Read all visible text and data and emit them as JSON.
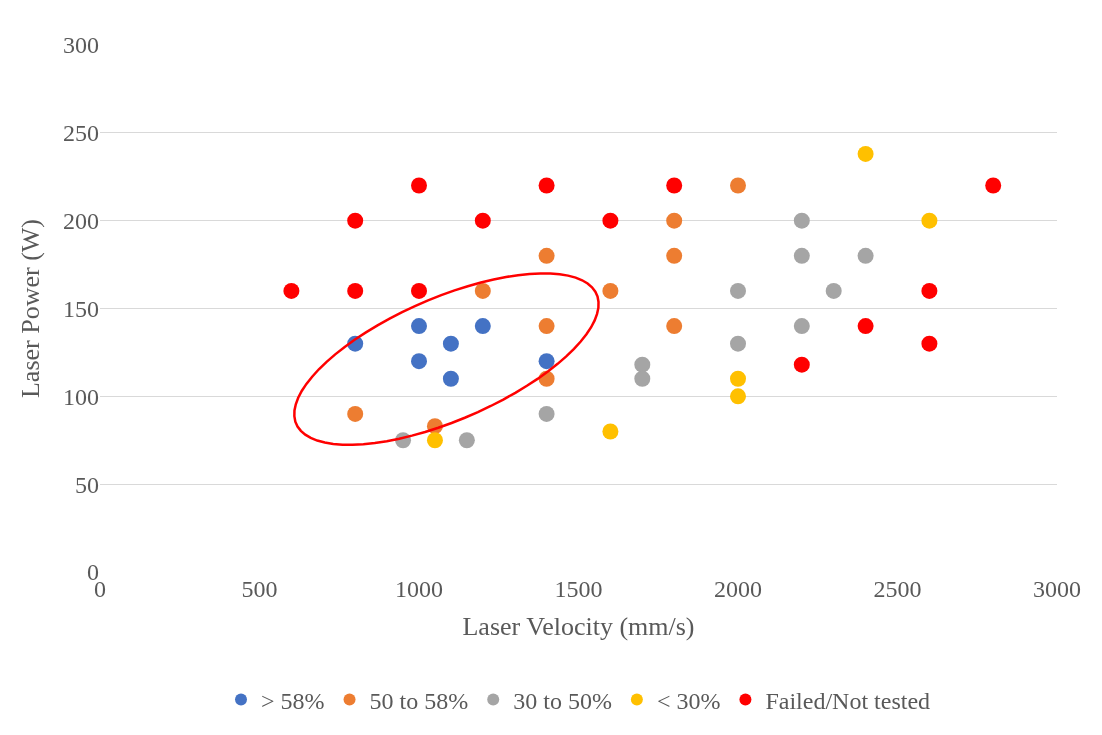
{
  "chart_data": {
    "type": "scatter",
    "xlabel": "Laser Velocity (mm/s)",
    "ylabel": "Laser Power (W)",
    "xlim": [
      0,
      3000
    ],
    "xticks": [
      0,
      500,
      1000,
      1500,
      2000,
      2500,
      3000
    ],
    "ylim": [
      0,
      300
    ],
    "yticks": [
      0,
      50,
      100,
      150,
      200,
      250,
      300
    ],
    "grid": "y",
    "legend": "bottom",
    "marker": "circle",
    "series": [
      {
        "name": "> 58%",
        "color": "#4472c4",
        "x": [
          800,
          1000,
          1000,
          1100,
          1100,
          1200,
          1400
        ],
        "values": [
          130,
          140,
          120,
          130,
          110,
          140,
          120
        ]
      },
      {
        "name": "50 to 58%",
        "color": "#ed7d31",
        "x": [
          800,
          1050,
          1200,
          1400,
          1400,
          1400,
          1600,
          1800,
          1800,
          1800,
          2000
        ],
        "values": [
          90,
          83,
          160,
          180,
          140,
          110,
          160,
          200,
          180,
          140,
          220
        ]
      },
      {
        "name": "30 to 50%",
        "color": "#a5a5a5",
        "x": [
          950,
          1150,
          1400,
          1700,
          1700,
          2000,
          2000,
          2200,
          2200,
          2200,
          2300,
          2400
        ],
        "values": [
          75,
          75,
          90,
          118,
          110,
          160,
          130,
          200,
          180,
          140,
          160,
          180
        ]
      },
      {
        "name": "< 30%",
        "color": "#ffc000",
        "x": [
          1050,
          1600,
          2000,
          2000,
          2400,
          2600
        ],
        "values": [
          75,
          80,
          110,
          100,
          238,
          200
        ]
      },
      {
        "name": "Failed/Not tested",
        "color": "#ff0000",
        "x": [
          600,
          800,
          800,
          1000,
          1000,
          1200,
          1400,
          1600,
          1800,
          2200,
          2400,
          2600,
          2600,
          2800
        ],
        "values": [
          160,
          200,
          160,
          220,
          160,
          200,
          220,
          200,
          220,
          118,
          140,
          160,
          130,
          220
        ]
      }
    ]
  }
}
